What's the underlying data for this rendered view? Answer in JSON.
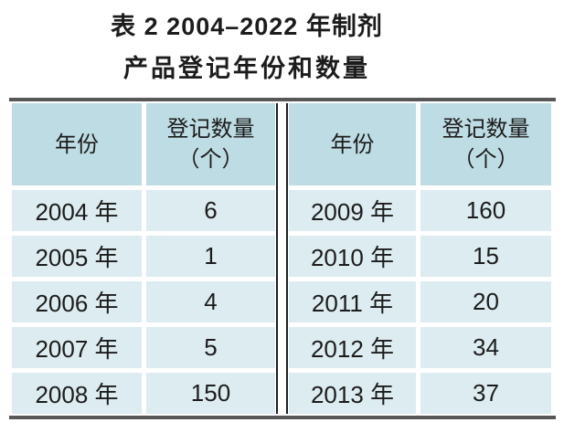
{
  "document": {
    "title_line1": "表 2 2004–2022 年制剂",
    "title_line2": "产品登记年份和数量"
  },
  "table": {
    "header": {
      "year": "年份",
      "quantity_line1": "登记数量",
      "quantity_line2": "（个）"
    },
    "groups": [
      {
        "rows": [
          {
            "year": "2004 年",
            "quantity": "6"
          },
          {
            "year": "2005 年",
            "quantity": "1"
          },
          {
            "year": "2006 年",
            "quantity": "4"
          },
          {
            "year": "2007 年",
            "quantity": "5"
          },
          {
            "year": "2008 年",
            "quantity": "150"
          }
        ]
      },
      {
        "rows": [
          {
            "year": "2009 年",
            "quantity": "160"
          },
          {
            "year": "2010 年",
            "quantity": "15"
          },
          {
            "year": "2011 年",
            "quantity": "20"
          },
          {
            "year": "2012 年",
            "quantity": "34"
          },
          {
            "year": "2013 年",
            "quantity": "37"
          }
        ]
      }
    ]
  },
  "colors": {
    "page_bg": "#ffffff",
    "header_cell_bg": "#bedce3",
    "data_cell_bg": "#ddecf1",
    "table_border": "#575757",
    "group_divider": "#1f1f1f",
    "text": "#1c1c1c"
  }
}
